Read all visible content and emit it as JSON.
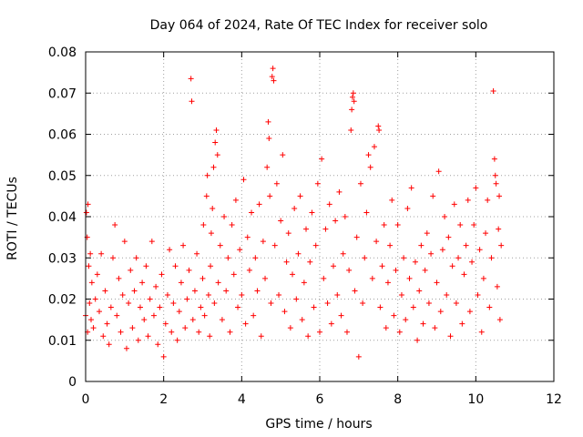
{
  "chart_data": {
    "type": "scatter",
    "title": "Day 064 of 2024, Rate Of TEC Index for receiver solo",
    "xlabel": "GPS time / hours",
    "ylabel": "ROTI / TECUs",
    "xlim": [
      0,
      12
    ],
    "ylim": [
      0,
      0.08
    ],
    "xticks": [
      0,
      2,
      4,
      6,
      8,
      10,
      12
    ],
    "xtick_labels": [
      "0",
      "2",
      "4",
      "6",
      "8",
      "10",
      "12"
    ],
    "yticks": [
      0,
      0.01,
      0.02,
      0.03,
      0.04,
      0.05,
      0.06,
      0.07,
      0.08
    ],
    "ytick_labels": [
      "0",
      "0.01",
      "0.02",
      "0.03",
      "0.04",
      "0.05",
      "0.06",
      "0.07",
      "0.08"
    ],
    "grid": true,
    "marker": "plus",
    "series": [
      {
        "name": "ROTI",
        "color": "#ff0000",
        "points": [
          [
            0.0,
            0.016
          ],
          [
            0.02,
            0.041
          ],
          [
            0.04,
            0.035
          ],
          [
            0.05,
            0.012
          ],
          [
            0.06,
            0.043
          ],
          [
            0.08,
            0.028
          ],
          [
            0.1,
            0.019
          ],
          [
            0.12,
            0.031
          ],
          [
            0.14,
            0.015
          ],
          [
            0.16,
            0.024
          ],
          [
            0.2,
            0.013
          ],
          [
            0.25,
            0.02
          ],
          [
            0.3,
            0.026
          ],
          [
            0.35,
            0.017
          ],
          [
            0.4,
            0.031
          ],
          [
            0.45,
            0.011
          ],
          [
            0.5,
            0.022
          ],
          [
            0.55,
            0.014
          ],
          [
            0.6,
            0.009
          ],
          [
            0.65,
            0.018
          ],
          [
            0.7,
            0.03
          ],
          [
            0.75,
            0.038
          ],
          [
            0.8,
            0.016
          ],
          [
            0.85,
            0.025
          ],
          [
            0.9,
            0.012
          ],
          [
            0.95,
            0.021
          ],
          [
            1.0,
            0.034
          ],
          [
            1.05,
            0.008
          ],
          [
            1.1,
            0.019
          ],
          [
            1.15,
            0.027
          ],
          [
            1.2,
            0.013
          ],
          [
            1.25,
            0.022
          ],
          [
            1.3,
            0.03
          ],
          [
            1.35,
            0.01
          ],
          [
            1.4,
            0.018
          ],
          [
            1.45,
            0.024
          ],
          [
            1.5,
            0.015
          ],
          [
            1.55,
            0.028
          ],
          [
            1.6,
            0.011
          ],
          [
            1.65,
            0.02
          ],
          [
            1.7,
            0.034
          ],
          [
            1.75,
            0.016
          ],
          [
            1.8,
            0.023
          ],
          [
            1.85,
            0.009
          ],
          [
            1.9,
            0.018
          ],
          [
            1.95,
            0.026
          ],
          [
            2.0,
            0.006
          ],
          [
            2.05,
            0.014
          ],
          [
            2.1,
            0.021
          ],
          [
            2.15,
            0.032
          ],
          [
            2.2,
            0.012
          ],
          [
            2.25,
            0.019
          ],
          [
            2.3,
            0.028
          ],
          [
            2.35,
            0.01
          ],
          [
            2.4,
            0.017
          ],
          [
            2.45,
            0.024
          ],
          [
            2.5,
            0.033
          ],
          [
            2.55,
            0.013
          ],
          [
            2.6,
            0.02
          ],
          [
            2.65,
            0.027
          ],
          [
            2.7,
            0.0735
          ],
          [
            2.72,
            0.068
          ],
          [
            2.75,
            0.015
          ],
          [
            2.8,
            0.022
          ],
          [
            2.85,
            0.031
          ],
          [
            2.9,
            0.012
          ],
          [
            2.95,
            0.018
          ],
          [
            3.0,
            0.025
          ],
          [
            3.02,
            0.038
          ],
          [
            3.05,
            0.016
          ],
          [
            3.1,
            0.045
          ],
          [
            3.12,
            0.05
          ],
          [
            3.15,
            0.021
          ],
          [
            3.18,
            0.011
          ],
          [
            3.2,
            0.028
          ],
          [
            3.22,
            0.036
          ],
          [
            3.25,
            0.042
          ],
          [
            3.28,
            0.052
          ],
          [
            3.3,
            0.019
          ],
          [
            3.32,
            0.058
          ],
          [
            3.35,
            0.061
          ],
          [
            3.38,
            0.055
          ],
          [
            3.4,
            0.024
          ],
          [
            3.45,
            0.033
          ],
          [
            3.5,
            0.015
          ],
          [
            3.55,
            0.04
          ],
          [
            3.6,
            0.022
          ],
          [
            3.65,
            0.03
          ],
          [
            3.7,
            0.012
          ],
          [
            3.75,
            0.038
          ],
          [
            3.8,
            0.026
          ],
          [
            3.85,
            0.044
          ],
          [
            3.9,
            0.018
          ],
          [
            3.95,
            0.032
          ],
          [
            4.0,
            0.021
          ],
          [
            4.05,
            0.049
          ],
          [
            4.1,
            0.014
          ],
          [
            4.15,
            0.035
          ],
          [
            4.2,
            0.027
          ],
          [
            4.25,
            0.041
          ],
          [
            4.3,
            0.016
          ],
          [
            4.35,
            0.03
          ],
          [
            4.4,
            0.022
          ],
          [
            4.45,
            0.043
          ],
          [
            4.5,
            0.011
          ],
          [
            4.55,
            0.034
          ],
          [
            4.6,
            0.025
          ],
          [
            4.65,
            0.052
          ],
          [
            4.68,
            0.063
          ],
          [
            4.7,
            0.059
          ],
          [
            4.72,
            0.045
          ],
          [
            4.75,
            0.019
          ],
          [
            4.78,
            0.074
          ],
          [
            4.8,
            0.076
          ],
          [
            4.82,
            0.073
          ],
          [
            4.85,
            0.033
          ],
          [
            4.9,
            0.048
          ],
          [
            4.95,
            0.021
          ],
          [
            5.0,
            0.039
          ],
          [
            5.05,
            0.055
          ],
          [
            5.1,
            0.017
          ],
          [
            5.15,
            0.029
          ],
          [
            5.2,
            0.036
          ],
          [
            5.25,
            0.013
          ],
          [
            5.3,
            0.026
          ],
          [
            5.35,
            0.042
          ],
          [
            5.4,
            0.02
          ],
          [
            5.45,
            0.031
          ],
          [
            5.5,
            0.045
          ],
          [
            5.55,
            0.015
          ],
          [
            5.6,
            0.024
          ],
          [
            5.65,
            0.037
          ],
          [
            5.7,
            0.011
          ],
          [
            5.75,
            0.029
          ],
          [
            5.8,
            0.041
          ],
          [
            5.85,
            0.018
          ],
          [
            5.9,
            0.033
          ],
          [
            5.95,
            0.048
          ],
          [
            6.0,
            0.012
          ],
          [
            6.05,
            0.054
          ],
          [
            6.1,
            0.025
          ],
          [
            6.15,
            0.037
          ],
          [
            6.2,
            0.019
          ],
          [
            6.25,
            0.043
          ],
          [
            6.3,
            0.014
          ],
          [
            6.35,
            0.028
          ],
          [
            6.4,
            0.039
          ],
          [
            6.45,
            0.021
          ],
          [
            6.5,
            0.046
          ],
          [
            6.55,
            0.016
          ],
          [
            6.6,
            0.031
          ],
          [
            6.65,
            0.04
          ],
          [
            6.7,
            0.012
          ],
          [
            6.75,
            0.027
          ],
          [
            6.8,
            0.061
          ],
          [
            6.82,
            0.066
          ],
          [
            6.84,
            0.069
          ],
          [
            6.86,
            0.07
          ],
          [
            6.88,
            0.068
          ],
          [
            6.9,
            0.022
          ],
          [
            6.95,
            0.035
          ],
          [
            7.0,
            0.006
          ],
          [
            7.05,
            0.048
          ],
          [
            7.1,
            0.019
          ],
          [
            7.15,
            0.03
          ],
          [
            7.2,
            0.041
          ],
          [
            7.25,
            0.055
          ],
          [
            7.3,
            0.052
          ],
          [
            7.35,
            0.025
          ],
          [
            7.4,
            0.057
          ],
          [
            7.45,
            0.034
          ],
          [
            7.5,
            0.062
          ],
          [
            7.52,
            0.061
          ],
          [
            7.55,
            0.018
          ],
          [
            7.6,
            0.028
          ],
          [
            7.65,
            0.038
          ],
          [
            7.7,
            0.013
          ],
          [
            7.75,
            0.024
          ],
          [
            7.8,
            0.033
          ],
          [
            7.85,
            0.044
          ],
          [
            7.9,
            0.016
          ],
          [
            7.95,
            0.027
          ],
          [
            8.0,
            0.038
          ],
          [
            8.05,
            0.012
          ],
          [
            8.1,
            0.021
          ],
          [
            8.15,
            0.03
          ],
          [
            8.2,
            0.015
          ],
          [
            8.25,
            0.042
          ],
          [
            8.3,
            0.025
          ],
          [
            8.35,
            0.047
          ],
          [
            8.4,
            0.018
          ],
          [
            8.45,
            0.029
          ],
          [
            8.5,
            0.01
          ],
          [
            8.55,
            0.022
          ],
          [
            8.6,
            0.033
          ],
          [
            8.65,
            0.014
          ],
          [
            8.7,
            0.027
          ],
          [
            8.75,
            0.036
          ],
          [
            8.8,
            0.019
          ],
          [
            8.85,
            0.031
          ],
          [
            8.9,
            0.045
          ],
          [
            8.95,
            0.013
          ],
          [
            9.0,
            0.024
          ],
          [
            9.05,
            0.051
          ],
          [
            9.1,
            0.017
          ],
          [
            9.15,
            0.032
          ],
          [
            9.2,
            0.04
          ],
          [
            9.25,
            0.021
          ],
          [
            9.3,
            0.035
          ],
          [
            9.35,
            0.011
          ],
          [
            9.4,
            0.028
          ],
          [
            9.45,
            0.043
          ],
          [
            9.5,
            0.019
          ],
          [
            9.55,
            0.03
          ],
          [
            9.6,
            0.038
          ],
          [
            9.65,
            0.014
          ],
          [
            9.7,
            0.026
          ],
          [
            9.75,
            0.033
          ],
          [
            9.8,
            0.044
          ],
          [
            9.85,
            0.017
          ],
          [
            9.9,
            0.029
          ],
          [
            9.95,
            0.038
          ],
          [
            10.0,
            0.047
          ],
          [
            10.05,
            0.021
          ],
          [
            10.1,
            0.032
          ],
          [
            10.15,
            0.012
          ],
          [
            10.2,
            0.025
          ],
          [
            10.25,
            0.036
          ],
          [
            10.3,
            0.044
          ],
          [
            10.35,
            0.018
          ],
          [
            10.4,
            0.03
          ],
          [
            10.45,
            0.0705
          ],
          [
            10.48,
            0.054
          ],
          [
            10.5,
            0.05
          ],
          [
            10.52,
            0.048
          ],
          [
            10.55,
            0.023
          ],
          [
            10.58,
            0.037
          ],
          [
            10.6,
            0.045
          ],
          [
            10.62,
            0.015
          ],
          [
            10.65,
            0.033
          ]
        ]
      }
    ]
  }
}
